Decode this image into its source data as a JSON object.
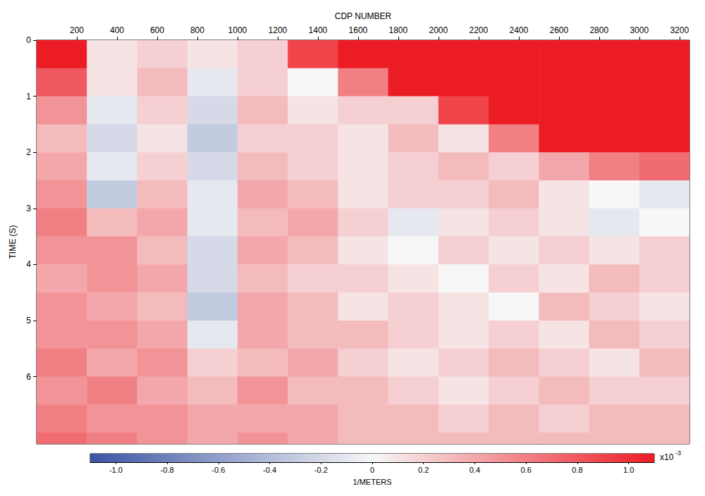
{
  "chart_data": {
    "type": "heatmap",
    "x_label": "CDP NUMBER",
    "y_label": "TIME (S)",
    "xlim": [
      0,
      3250
    ],
    "ylim": [
      0,
      7.2
    ],
    "xticks": [
      200,
      400,
      600,
      800,
      1000,
      1200,
      1400,
      1600,
      1800,
      2000,
      2200,
      2400,
      2600,
      2800,
      3000,
      3200
    ],
    "yticks": [
      0,
      1,
      2,
      3,
      4,
      5,
      6
    ],
    "x_edges": [
      0,
      250,
      500,
      750,
      1000,
      1250,
      1500,
      1750,
      2000,
      2250,
      2500,
      2750,
      3000,
      3250
    ],
    "y_edges": [
      0,
      0.5,
      1.0,
      1.5,
      2.0,
      2.5,
      3.0,
      3.5,
      4.0,
      4.5,
      5.0,
      5.5,
      6.0,
      6.5,
      7.0,
      7.2
    ],
    "cells": [
      [
        1.1,
        0.1,
        0.2,
        0.1,
        0.2,
        0.9,
        1.1,
        1.1,
        1.1,
        1.1,
        1.1,
        1.1,
        1.1
      ],
      [
        0.8,
        0.1,
        0.3,
        -0.1,
        0.2,
        0.0,
        0.6,
        1.1,
        1.1,
        1.1,
        1.1,
        1.1,
        1.1
      ],
      [
        0.5,
        -0.1,
        0.2,
        -0.2,
        0.3,
        0.1,
        0.2,
        0.2,
        0.9,
        1.1,
        1.1,
        1.1,
        1.1
      ],
      [
        0.3,
        -0.2,
        0.1,
        -0.3,
        0.2,
        0.2,
        0.1,
        0.3,
        0.1,
        0.6,
        1.1,
        1.1,
        1.1
      ],
      [
        0.4,
        -0.1,
        0.2,
        -0.2,
        0.3,
        0.2,
        0.1,
        0.2,
        0.3,
        0.2,
        0.4,
        0.6,
        0.7
      ],
      [
        0.5,
        -0.3,
        0.3,
        -0.1,
        0.4,
        0.3,
        0.1,
        0.2,
        0.2,
        0.3,
        0.1,
        0.0,
        -0.1
      ],
      [
        0.6,
        0.3,
        0.4,
        -0.1,
        0.3,
        0.4,
        0.2,
        -0.1,
        0.1,
        0.2,
        0.1,
        -0.1,
        0.0
      ],
      [
        0.5,
        0.5,
        0.3,
        -0.2,
        0.4,
        0.3,
        0.1,
        0.0,
        0.2,
        0.1,
        0.2,
        0.1,
        0.2
      ],
      [
        0.4,
        0.5,
        0.4,
        -0.2,
        0.3,
        0.2,
        0.2,
        0.1,
        0.0,
        0.2,
        0.1,
        0.3,
        0.2
      ],
      [
        0.5,
        0.4,
        0.3,
        -0.3,
        0.4,
        0.3,
        0.1,
        0.2,
        0.1,
        0.0,
        0.3,
        0.2,
        0.1
      ],
      [
        0.5,
        0.5,
        0.4,
        -0.1,
        0.4,
        0.3,
        0.3,
        0.2,
        0.1,
        0.2,
        0.1,
        0.3,
        0.2
      ],
      [
        0.6,
        0.4,
        0.5,
        0.2,
        0.3,
        0.4,
        0.2,
        0.1,
        0.2,
        0.3,
        0.2,
        0.1,
        0.3
      ],
      [
        0.5,
        0.6,
        0.4,
        0.3,
        0.5,
        0.3,
        0.3,
        0.2,
        0.1,
        0.2,
        0.3,
        0.2,
        0.2
      ],
      [
        0.6,
        0.5,
        0.5,
        0.4,
        0.4,
        0.4,
        0.3,
        0.3,
        0.2,
        0.3,
        0.2,
        0.3,
        0.3
      ],
      [
        0.7,
        0.6,
        0.5,
        0.4,
        0.5,
        0.4,
        0.3,
        0.3,
        0.3,
        0.3,
        0.3,
        0.3,
        0.3
      ]
    ],
    "colorbar": {
      "range": [
        -1.1,
        1.1
      ],
      "ticks": [
        {
          "value": -1,
          "label": "-1.0"
        },
        -0.8,
        -0.6,
        -0.4,
        -0.2,
        0,
        0.2,
        0.4,
        0.6,
        0.8,
        {
          "value": 1,
          "label": "1.0"
        }
      ],
      "label": "1/METERS",
      "multiplier": "x10",
      "exponent": "-3",
      "colors": [
        "#3a54a4",
        "#f7f7f7",
        "#ec1c24"
      ]
    }
  }
}
